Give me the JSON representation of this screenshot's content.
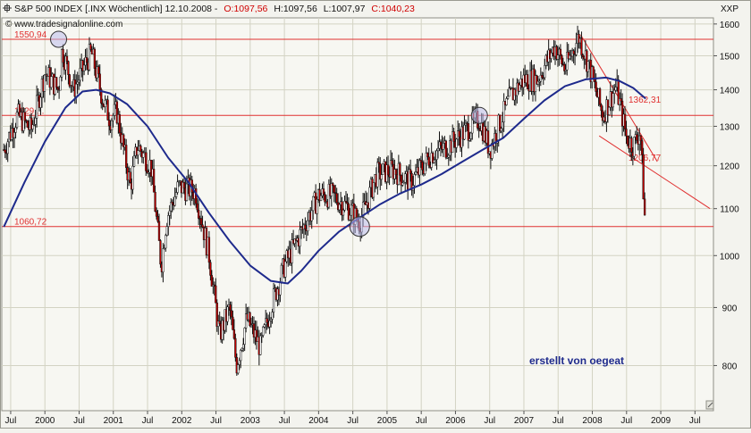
{
  "header": {
    "title": "S&P 500 INDEX [.INX  Wöchentlich] 12.10.2008 -",
    "open_label": "O:1097,56",
    "high_label": "H:1097,56",
    "low_label": "L:1007,97",
    "close_label": "C:1040,23",
    "source": "© www.tradesignalonline.com",
    "axis_title": "XXP"
  },
  "annotation": {
    "credit": "erstellt von oegeat"
  },
  "colors": {
    "background": "#f3f3ee",
    "grid": "#d3d3c3",
    "hline": "#e03030",
    "up_candle": "#ffffff",
    "down_candle": "#c00000",
    "moving_average": "#1e2a8c",
    "credit": "#1e2a8c"
  },
  "chart_data": {
    "type": "candlestick",
    "title": "S&P 500 INDEX [.INX  Wöchentlich] 12.10.2008",
    "y_scale": "log",
    "ylim": [
      730,
      1620
    ],
    "y_ticks": [
      800,
      900,
      1000,
      1100,
      1200,
      1300,
      1400,
      1500,
      1600
    ],
    "x_range": [
      "1999-05",
      "2009-10"
    ],
    "x_ticks": [
      {
        "date": 1999.5,
        "label": "Jul"
      },
      {
        "date": 2000.0,
        "label": "2000"
      },
      {
        "date": 2000.5,
        "label": "Jul"
      },
      {
        "date": 2001.0,
        "label": "2001"
      },
      {
        "date": 2001.5,
        "label": "Jul"
      },
      {
        "date": 2002.0,
        "label": "2002"
      },
      {
        "date": 2002.5,
        "label": "Jul"
      },
      {
        "date": 2003.0,
        "label": "2003"
      },
      {
        "date": 2003.5,
        "label": "Jul"
      },
      {
        "date": 2004.0,
        "label": "2004"
      },
      {
        "date": 2004.5,
        "label": "Jul"
      },
      {
        "date": 2005.0,
        "label": "2005"
      },
      {
        "date": 2005.5,
        "label": "Jul"
      },
      {
        "date": 2006.0,
        "label": "2006"
      },
      {
        "date": 2006.5,
        "label": "Jul"
      },
      {
        "date": 2007.0,
        "label": "2007"
      },
      {
        "date": 2007.5,
        "label": "Jul"
      },
      {
        "date": 2008.0,
        "label": "2008"
      },
      {
        "date": 2008.5,
        "label": "Jul"
      },
      {
        "date": 2009.0,
        "label": "2009"
      },
      {
        "date": 2009.5,
        "label": "Jul"
      }
    ],
    "horizontal_levels": [
      {
        "value": 1550.94,
        "label": "1550,94"
      },
      {
        "value": 1329,
        "label": "1329,..."
      },
      {
        "value": 1060.72,
        "label": "1060,72"
      }
    ],
    "trend_lines": [
      {
        "from": {
          "date": 2007.83,
          "value": 1565
        },
        "to": {
          "date": 2008.95,
          "value": 1210
        },
        "label": "1362,31"
      },
      {
        "from": {
          "date": 2008.1,
          "value": 1275
        },
        "to": {
          "date": 2009.72,
          "value": 1100
        },
        "label": "1206,77"
      }
    ],
    "close_path": [
      {
        "date": 1999.4,
        "value": 1240
      },
      {
        "date": 1999.6,
        "value": 1330
      },
      {
        "date": 1999.8,
        "value": 1290
      },
      {
        "date": 2000.0,
        "value": 1450
      },
      {
        "date": 2000.2,
        "value": 1400
      },
      {
        "date": 2000.25,
        "value": 1520
      },
      {
        "date": 2000.42,
        "value": 1400
      },
      {
        "date": 2000.6,
        "value": 1480
      },
      {
        "date": 2000.68,
        "value": 1510
      },
      {
        "date": 2000.85,
        "value": 1370
      },
      {
        "date": 2000.95,
        "value": 1320
      },
      {
        "date": 2001.05,
        "value": 1340
      },
      {
        "date": 2001.25,
        "value": 1150
      },
      {
        "date": 2001.35,
        "value": 1250
      },
      {
        "date": 2001.55,
        "value": 1200
      },
      {
        "date": 2001.7,
        "value": 980
      },
      {
        "date": 2001.78,
        "value": 1080
      },
      {
        "date": 2001.95,
        "value": 1150
      },
      {
        "date": 2002.2,
        "value": 1140
      },
      {
        "date": 2002.4,
        "value": 1000
      },
      {
        "date": 2002.55,
        "value": 850
      },
      {
        "date": 2002.7,
        "value": 900
      },
      {
        "date": 2002.8,
        "value": 800
      },
      {
        "date": 2002.95,
        "value": 880
      },
      {
        "date": 2003.15,
        "value": 830
      },
      {
        "date": 2003.3,
        "value": 900
      },
      {
        "date": 2003.5,
        "value": 980
      },
      {
        "date": 2003.75,
        "value": 1050
      },
      {
        "date": 2004.0,
        "value": 1130
      },
      {
        "date": 2004.2,
        "value": 1130
      },
      {
        "date": 2004.45,
        "value": 1100
      },
      {
        "date": 2004.6,
        "value": 1070
      },
      {
        "date": 2004.85,
        "value": 1180
      },
      {
        "date": 2005.1,
        "value": 1190
      },
      {
        "date": 2005.35,
        "value": 1160
      },
      {
        "date": 2005.65,
        "value": 1230
      },
      {
        "date": 2005.9,
        "value": 1250
      },
      {
        "date": 2006.35,
        "value": 1320
      },
      {
        "date": 2006.5,
        "value": 1240
      },
      {
        "date": 2006.8,
        "value": 1380
      },
      {
        "date": 2007.0,
        "value": 1430
      },
      {
        "date": 2007.2,
        "value": 1430
      },
      {
        "date": 2007.45,
        "value": 1530
      },
      {
        "date": 2007.6,
        "value": 1460
      },
      {
        "date": 2007.8,
        "value": 1560
      },
      {
        "date": 2007.95,
        "value": 1470
      },
      {
        "date": 2008.15,
        "value": 1330
      },
      {
        "date": 2008.35,
        "value": 1410
      },
      {
        "date": 2008.5,
        "value": 1270
      },
      {
        "date": 2008.6,
        "value": 1250
      },
      {
        "date": 2008.7,
        "value": 1290
      },
      {
        "date": 2008.76,
        "value": 1100
      },
      {
        "date": 2008.78,
        "value": 1040
      }
    ],
    "moving_average": [
      {
        "date": 1999.4,
        "value": 1060
      },
      {
        "date": 1999.7,
        "value": 1160
      },
      {
        "date": 2000.0,
        "value": 1260
      },
      {
        "date": 2000.3,
        "value": 1350
      },
      {
        "date": 2000.55,
        "value": 1395
      },
      {
        "date": 2000.75,
        "value": 1400
      },
      {
        "date": 2000.95,
        "value": 1390
      },
      {
        "date": 2001.2,
        "value": 1360
      },
      {
        "date": 2001.5,
        "value": 1300
      },
      {
        "date": 2001.8,
        "value": 1220
      },
      {
        "date": 2002.1,
        "value": 1160
      },
      {
        "date": 2002.4,
        "value": 1090
      },
      {
        "date": 2002.7,
        "value": 1030
      },
      {
        "date": 2003.0,
        "value": 980
      },
      {
        "date": 2003.3,
        "value": 950
      },
      {
        "date": 2003.55,
        "value": 945
      },
      {
        "date": 2003.75,
        "value": 970
      },
      {
        "date": 2004.0,
        "value": 1010
      },
      {
        "date": 2004.3,
        "value": 1050
      },
      {
        "date": 2004.6,
        "value": 1080
      },
      {
        "date": 2004.9,
        "value": 1110
      },
      {
        "date": 2005.2,
        "value": 1135
      },
      {
        "date": 2005.5,
        "value": 1155
      },
      {
        "date": 2005.8,
        "value": 1180
      },
      {
        "date": 2006.1,
        "value": 1210
      },
      {
        "date": 2006.4,
        "value": 1240
      },
      {
        "date": 2006.7,
        "value": 1270
      },
      {
        "date": 2007.0,
        "value": 1320
      },
      {
        "date": 2007.3,
        "value": 1370
      },
      {
        "date": 2007.6,
        "value": 1410
      },
      {
        "date": 2007.9,
        "value": 1430
      },
      {
        "date": 2008.2,
        "value": 1435
      },
      {
        "date": 2008.4,
        "value": 1425
      },
      {
        "date": 2008.6,
        "value": 1405
      },
      {
        "date": 2008.78,
        "value": 1375
      }
    ],
    "circled_points": [
      {
        "date": 2000.2,
        "value": 1550.94
      },
      {
        "date": 2004.6,
        "value": 1060.72
      },
      {
        "date": 2006.35,
        "value": 1329
      }
    ]
  }
}
